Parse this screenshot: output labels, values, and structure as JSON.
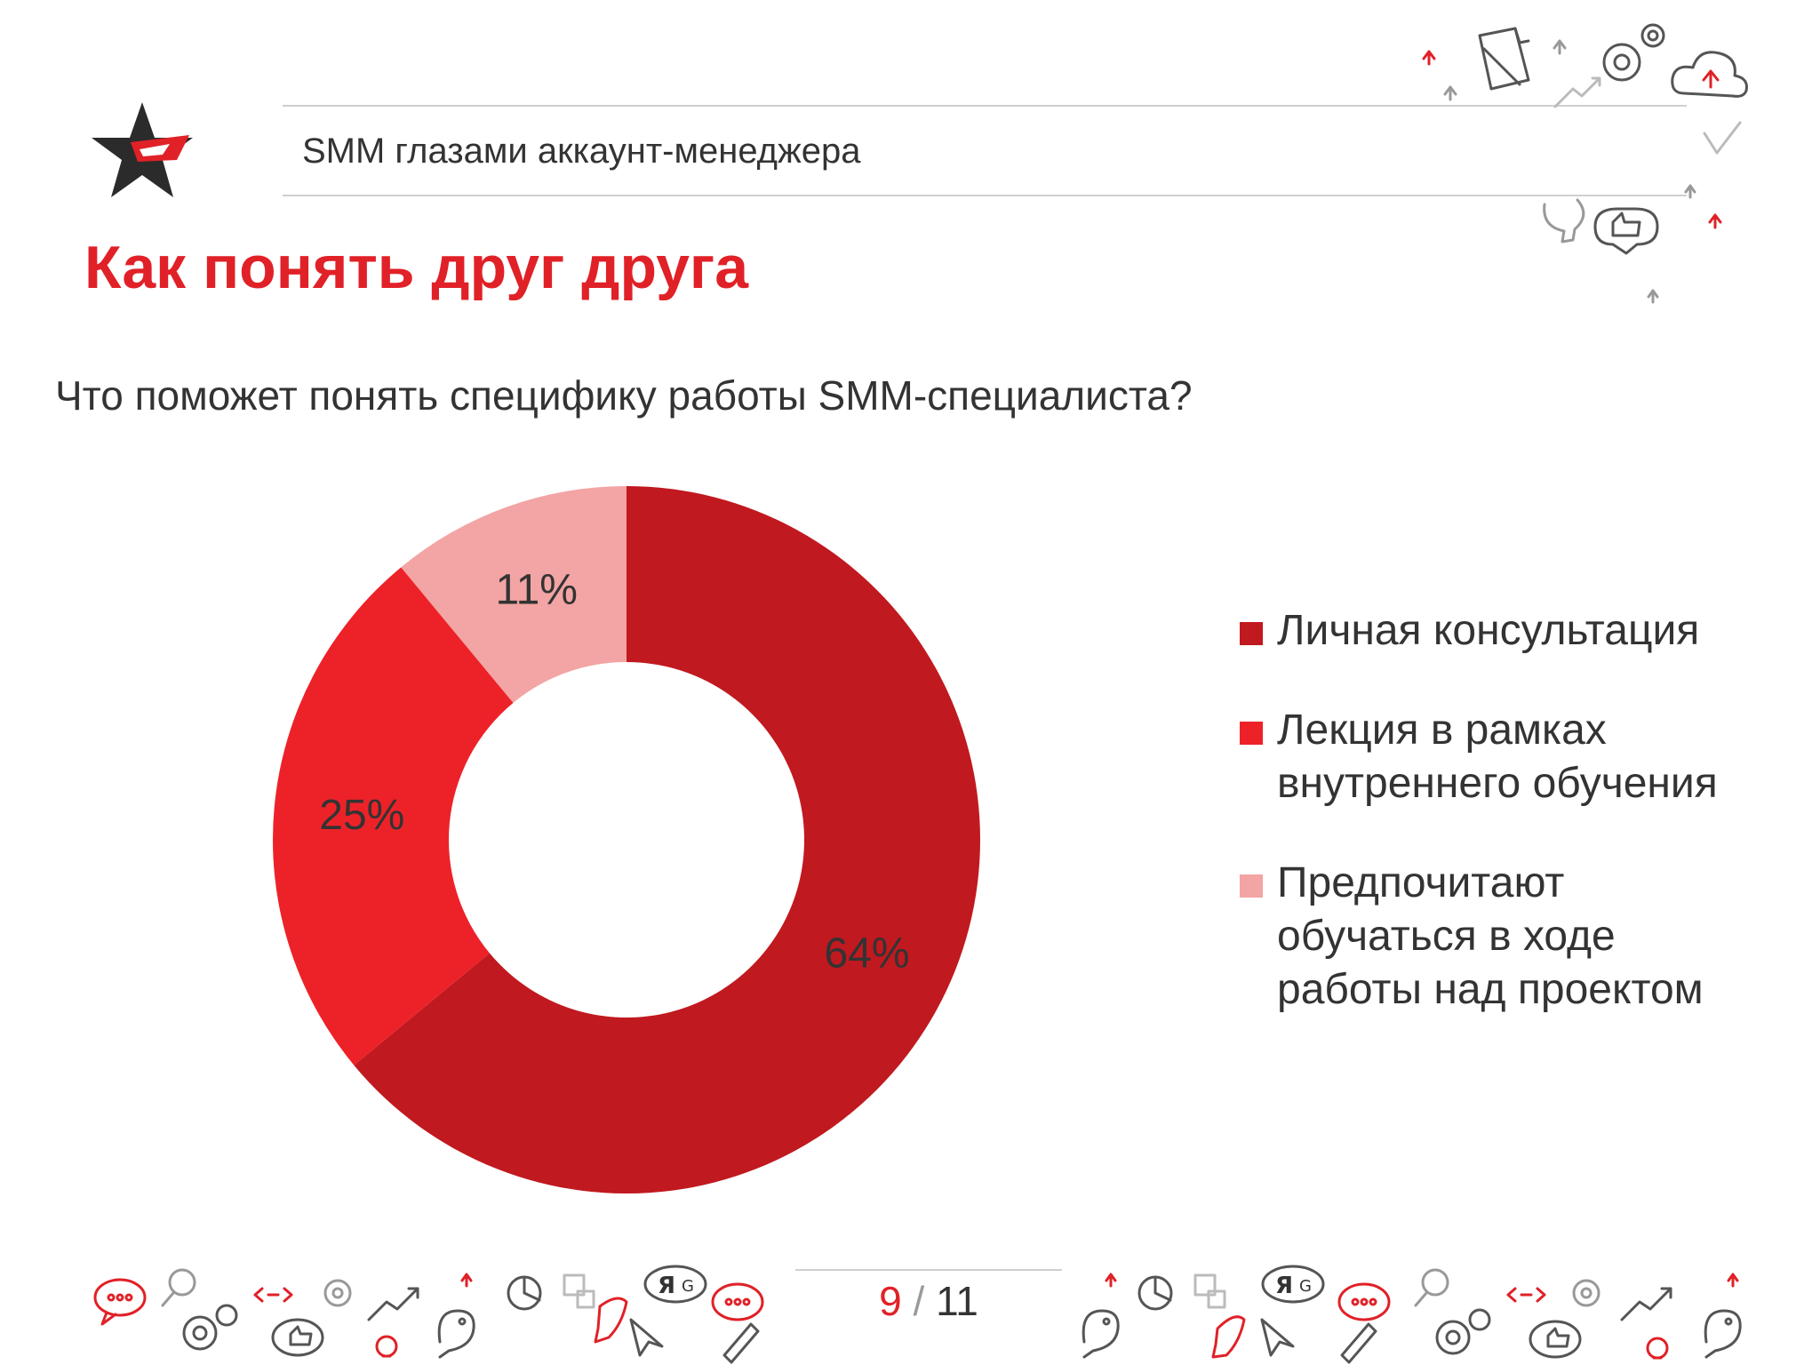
{
  "header": {
    "subtitle": "SMM глазами аккаунт-менеджера",
    "logo_icon": "star-logo-icon"
  },
  "slide": {
    "title": "Как понять друг друга",
    "question": "Что поможет понять специфику работы SMM-специалиста?"
  },
  "chart_data": {
    "type": "pie",
    "donut": true,
    "categories": [
      "Личная консультация",
      "Лекция в рамках внутреннего обучения",
      "Предпочитают обучаться в ходе работы над проектом"
    ],
    "values": [
      64,
      25,
      11
    ],
    "labels": [
      "64%",
      "25%",
      "11%"
    ],
    "colors": [
      "#c0191f",
      "#ed2228",
      "#f3a4a4"
    ],
    "legend_position": "right",
    "legend": [
      {
        "lines": [
          "Личная консультация"
        ],
        "color": "#c0191f"
      },
      {
        "lines": [
          "Лекция в рамках",
          "внутреннего обучения"
        ],
        "color": "#ed2228"
      },
      {
        "lines": [
          "Предпочитают",
          "обучаться в ходе",
          "работы над проектом"
        ],
        "color": "#f3a4a4"
      }
    ]
  },
  "footer": {
    "page_current": "9",
    "page_separator": "/",
    "page_total": "11"
  },
  "colors": {
    "accent": "#e02127",
    "text": "#333333",
    "rule": "#cfcfcf"
  },
  "decorations": [
    "upload-icon",
    "edit-document-icon",
    "gear-icon",
    "cloud-upload-icon",
    "checkmark-icon",
    "lightbulb-icon",
    "thumbs-up-icon",
    "chat-icon",
    "search-icon",
    "bird-icon",
    "rocket-icon",
    "pie-chart-icon",
    "puzzle-icon",
    "yandex-google-icon",
    "pencil-icon"
  ]
}
